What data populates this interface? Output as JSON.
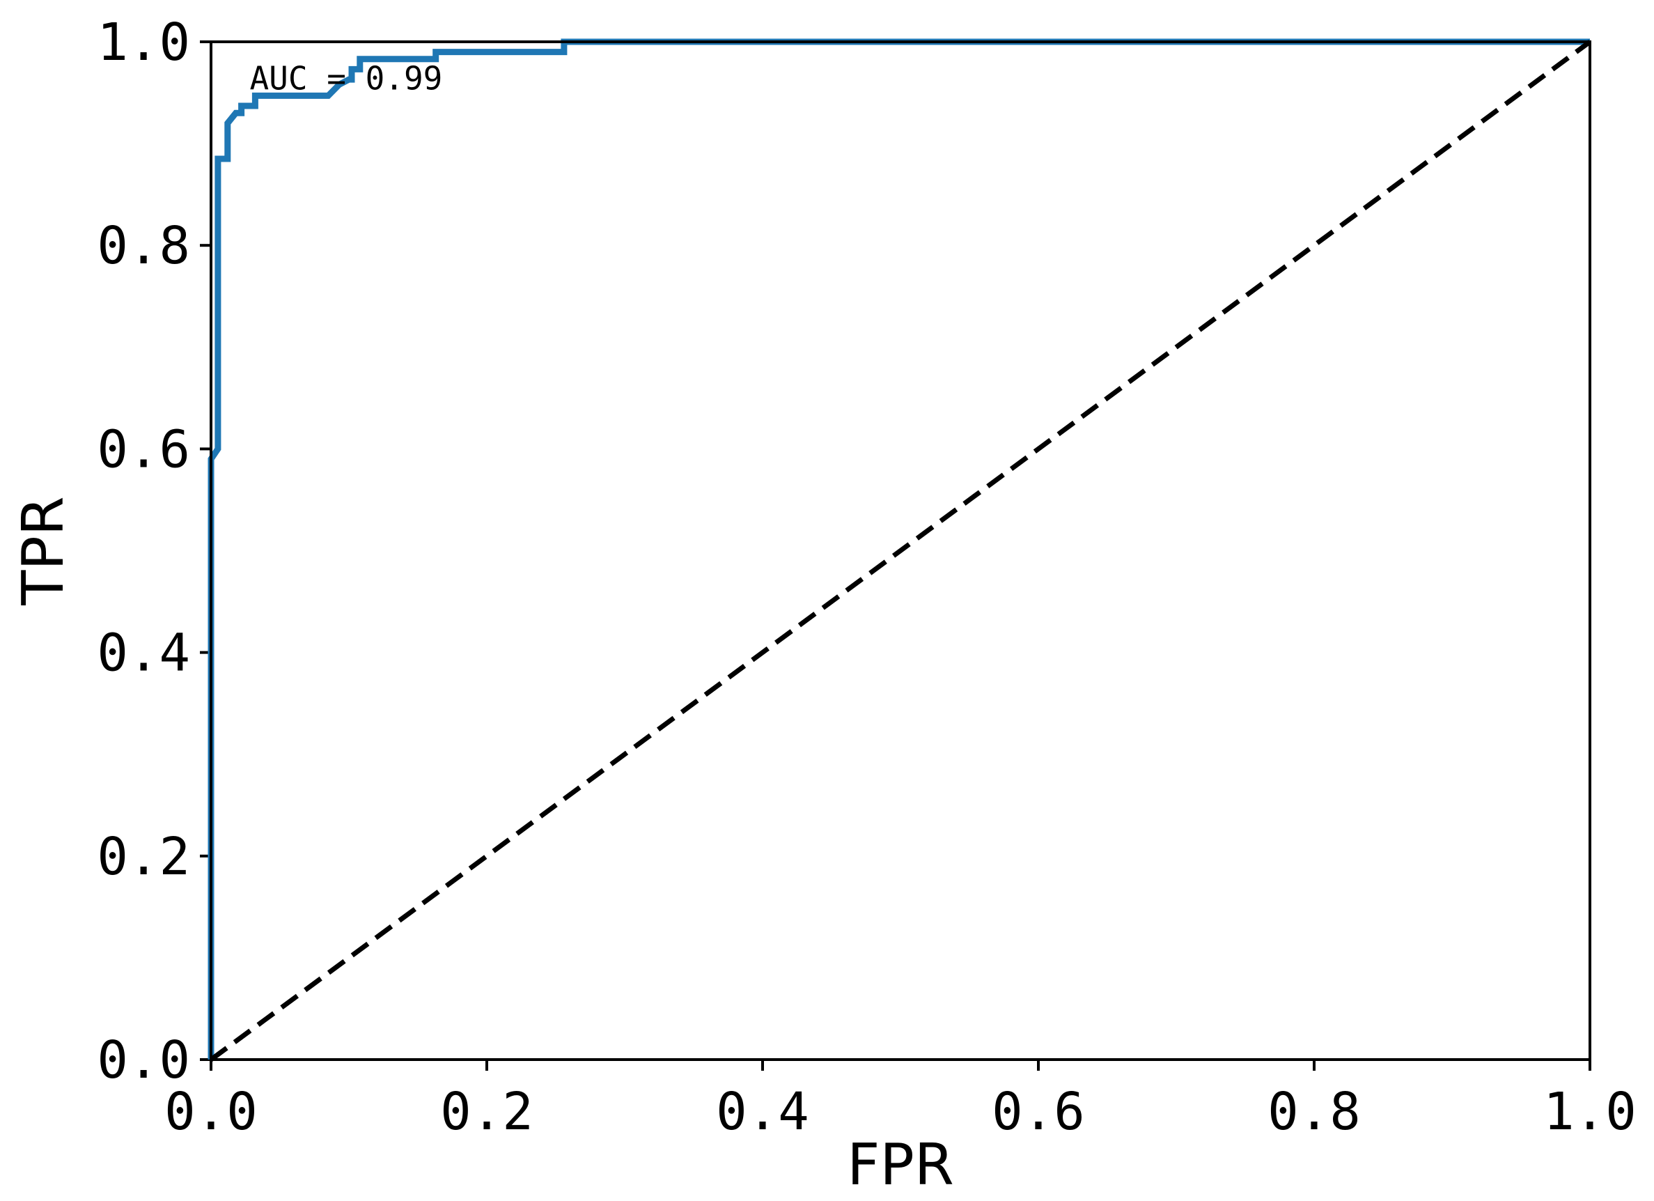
{
  "chart_data": {
    "type": "line",
    "xlabel": "FPR",
    "ylabel": "TPR",
    "xlim": [
      0.0,
      1.0
    ],
    "ylim": [
      0.0,
      1.0
    ],
    "x_ticks": [
      "0.0",
      "0.2",
      "0.4",
      "0.6",
      "0.8",
      "1.0"
    ],
    "y_ticks": [
      "0.0",
      "0.2",
      "0.4",
      "0.6",
      "0.8",
      "1.0"
    ],
    "grid": false,
    "annotation": "AUC = 0.99",
    "series": [
      {
        "color": "#1f77b4",
        "style": "solid",
        "x": [
          0.0,
          0.0,
          0.005,
          0.005,
          0.012,
          0.012,
          0.018,
          0.022,
          0.022,
          0.032,
          0.032,
          0.085,
          0.093,
          0.1,
          0.102,
          0.102,
          0.108,
          0.108,
          0.163,
          0.163,
          0.256,
          0.256,
          1.0
        ],
        "y": [
          0.0,
          0.59,
          0.6,
          0.885,
          0.885,
          0.92,
          0.93,
          0.93,
          0.937,
          0.937,
          0.947,
          0.947,
          0.958,
          0.963,
          0.963,
          0.973,
          0.973,
          0.983,
          0.983,
          0.99,
          0.99,
          1.0,
          1.0
        ]
      },
      {
        "color": "#000000",
        "style": "dashed",
        "x": [
          0.0,
          1.0
        ],
        "y": [
          0.0,
          1.0
        ]
      }
    ]
  }
}
